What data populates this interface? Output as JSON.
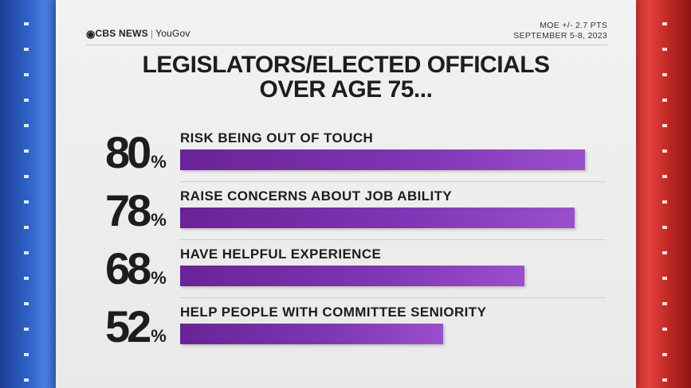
{
  "brand": {
    "network": "CBS NEWS",
    "partner": "YouGov"
  },
  "meta": {
    "moe": "MOE +/- 2.7 PTS",
    "dates": "SEPTEMBER 5-8, 2023"
  },
  "chart_data": {
    "type": "bar",
    "orientation": "horizontal",
    "title": "LEGISLATORS/ELECTED OFFICIALS OVER AGE 75...",
    "title_lines": [
      "LEGISLATORS/ELECTED OFFICIALS",
      "OVER AGE 75..."
    ],
    "categories": [
      "RISK BEING OUT OF TOUCH",
      "RAISE CONCERNS ABOUT JOB ABILITY",
      "HAVE HELPFUL EXPERIENCE",
      "HELP PEOPLE WITH COMMITTEE SENIORITY"
    ],
    "values": [
      80,
      78,
      68,
      52
    ],
    "unit": "%",
    "xlim": [
      0,
      100
    ],
    "bar_color": "#7e35b3",
    "grid": false,
    "legend": "none"
  },
  "colors": {
    "accent": "#7e35b3",
    "left_stripe": "#2f62c8",
    "right_stripe": "#e2403a"
  }
}
